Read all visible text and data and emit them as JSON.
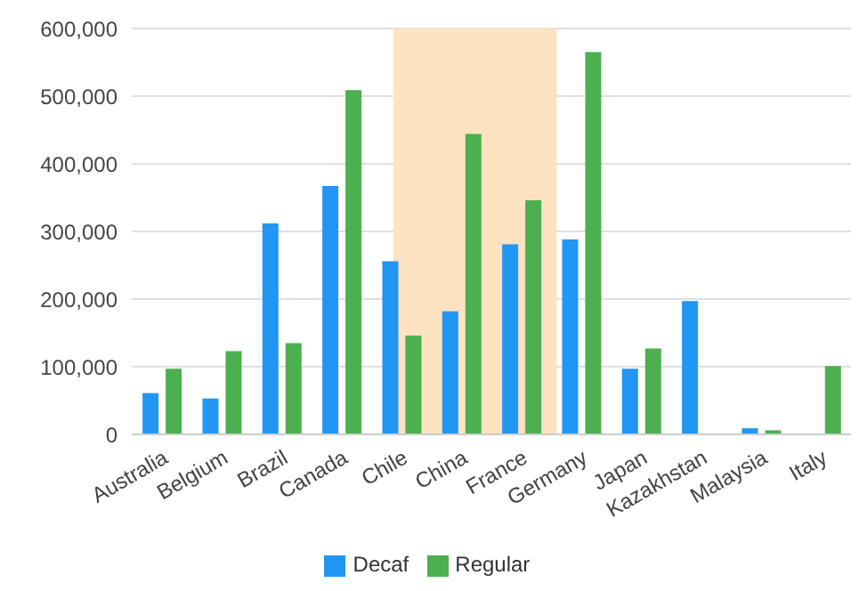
{
  "chart_data": {
    "type": "bar",
    "categories": [
      "Australia",
      "Belgium",
      "Brazil",
      "Canada",
      "Chile",
      "China",
      "France",
      "Germany",
      "Japan",
      "Kazakhstan",
      "Malaysia",
      "Italy"
    ],
    "series": [
      {
        "name": "Decaf",
        "color": "#2196f3",
        "values": [
          61000,
          53000,
          312000,
          367000,
          256000,
          182000,
          281000,
          288000,
          97000,
          197000,
          9000,
          null
        ]
      },
      {
        "name": "Regular",
        "color": "#4caf50",
        "values": [
          97000,
          123000,
          135000,
          509000,
          146000,
          444000,
          346000,
          565000,
          127000,
          null,
          6000,
          101000
        ]
      }
    ],
    "ylim": [
      0,
      600000
    ],
    "yticks": [
      0,
      {
        "value": 100000,
        "label": "100,000"
      },
      {
        "value": 200000,
        "label": "200,000"
      },
      {
        "value": 300000,
        "label": "300,000"
      },
      {
        "value": 400000,
        "label": "400,000"
      },
      {
        "value": 500000,
        "label": "500,000"
      },
      {
        "value": 600000,
        "label": "600,000"
      }
    ],
    "grid": "y",
    "legend": "bottom",
    "bands": [
      {
        "axis": "x",
        "from": "Chile",
        "to": "France",
        "color": "#fde3c2"
      }
    ]
  }
}
